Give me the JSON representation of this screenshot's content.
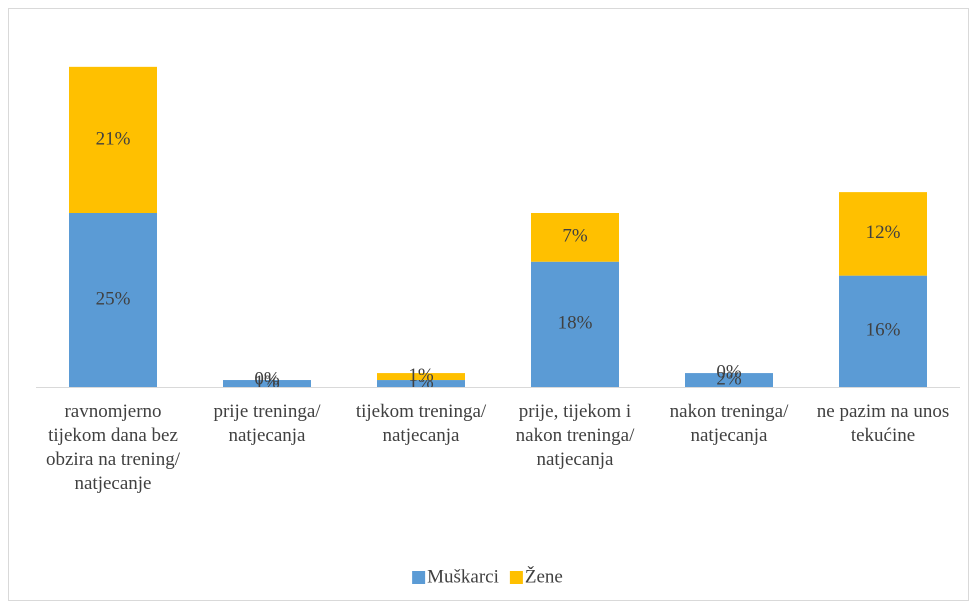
{
  "chart_data": {
    "type": "stacked_bar",
    "categories": [
      "ravnomjerno tijekom dana bez obzira na trening/ natjecanje",
      "prije treninga/ natjecanja",
      "tijekom treninga/ natjecanja",
      "prije, tijekom i nakon treninga/ natjecanja",
      "nakon treninga/ natjecanja",
      "ne pazim na unos tekućine"
    ],
    "series": [
      {
        "name": "Muškarci",
        "color": "#5b9bd5",
        "values": [
          25,
          1,
          1,
          18,
          2,
          16
        ],
        "value_labels": [
          "25%",
          "1%",
          "1%",
          "18%",
          "2%",
          "16%"
        ]
      },
      {
        "name": "Žene",
        "color": "#ffc000",
        "values": [
          21,
          0,
          1,
          7,
          0,
          12
        ],
        "value_labels": [
          "21%",
          "0%",
          "1%",
          "7%",
          "0%",
          "12%"
        ]
      }
    ],
    "ylim": [
      0,
      50
    ],
    "legend": "bottom"
  }
}
